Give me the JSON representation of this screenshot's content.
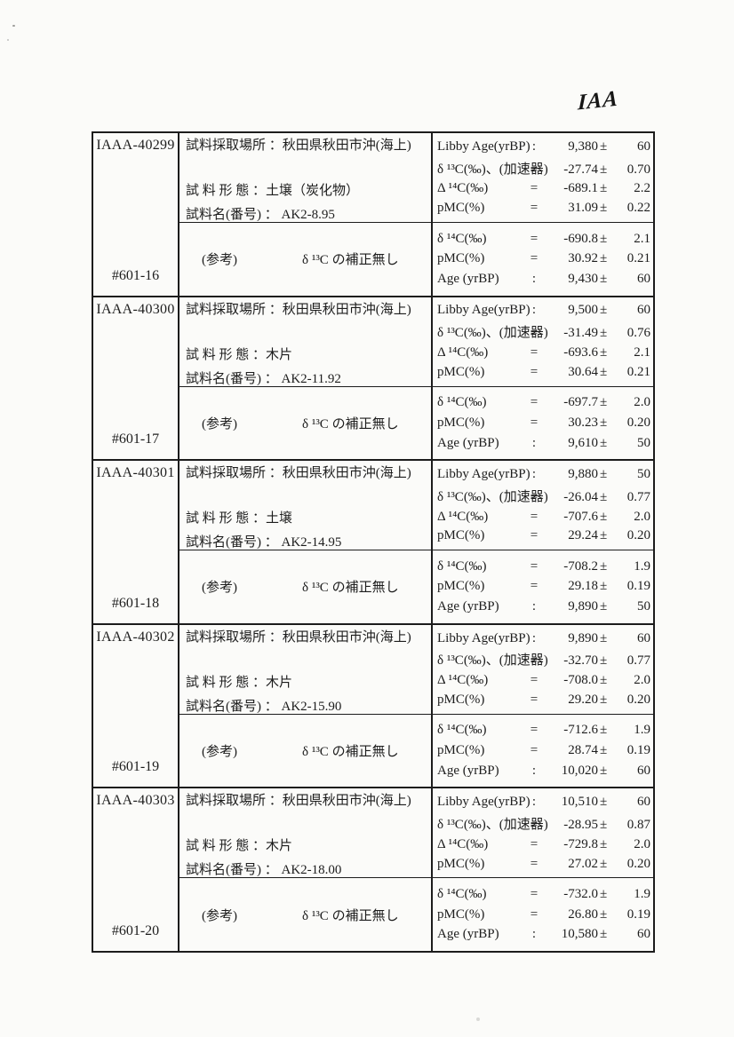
{
  "page": {
    "handwritten_mark": "IAA"
  },
  "symbols": {
    "pm": "±"
  },
  "table": {
    "blocks": [
      {
        "sample_id": "IAAA-40299",
        "ref_no": "#601-16",
        "location_line": "試料採取場所 ：秋田県秋田市沖(海上)",
        "form_line": "試 料 形 態  ：土壌（炭化物）",
        "name_line": "試料名(番号) ： AK2-8.95",
        "note_label": "(参考)",
        "note_text": "δ ¹³C の補正無し",
        "meas_top": [
          {
            "label": "Libby Age(yrBP)",
            "sep": ":",
            "value": "9,380",
            "error": "60"
          },
          {
            "label": "δ ¹³C(‰)、(加速器)",
            "sep": "=",
            "value": "-27.74",
            "error": "0.70"
          },
          {
            "label": "Δ ¹⁴C(‰)",
            "sep": "=",
            "value": "-689.1",
            "error": "2.2"
          },
          {
            "label": "pMC(%)",
            "sep": "=",
            "value": "31.09",
            "error": "0.22"
          }
        ],
        "meas_bottom": [
          {
            "label": "δ ¹⁴C(‰)",
            "sep": "=",
            "value": "-690.8",
            "error": "2.1"
          },
          {
            "label": "pMC(%)",
            "sep": "=",
            "value": "30.92",
            "error": "0.21"
          },
          {
            "label": "Age (yrBP)",
            "sep": ":",
            "value": "9,430",
            "error": "60"
          }
        ]
      },
      {
        "sample_id": "IAAA-40300",
        "ref_no": "#601-17",
        "location_line": "試料採取場所 ：秋田県秋田市沖(海上)",
        "form_line": "試 料 形 態  ：木片",
        "name_line": "試料名(番号) ： AK2-11.92",
        "note_label": "(参考)",
        "note_text": "δ ¹³C の補正無し",
        "meas_top": [
          {
            "label": "Libby Age(yrBP)",
            "sep": ":",
            "value": "9,500",
            "error": "60"
          },
          {
            "label": "δ ¹³C(‰)、(加速器)",
            "sep": "=",
            "value": "-31.49",
            "error": "0.76"
          },
          {
            "label": "Δ ¹⁴C(‰)",
            "sep": "=",
            "value": "-693.6",
            "error": "2.1"
          },
          {
            "label": "pMC(%)",
            "sep": "=",
            "value": "30.64",
            "error": "0.21"
          }
        ],
        "meas_bottom": [
          {
            "label": "δ ¹⁴C(‰)",
            "sep": "=",
            "value": "-697.7",
            "error": "2.0"
          },
          {
            "label": "pMC(%)",
            "sep": "=",
            "value": "30.23",
            "error": "0.20"
          },
          {
            "label": "Age (yrBP)",
            "sep": ":",
            "value": "9,610",
            "error": "50"
          }
        ]
      },
      {
        "sample_id": "IAAA-40301",
        "ref_no": "#601-18",
        "location_line": "試料採取場所 ：秋田県秋田市沖(海上)",
        "form_line": "試 料 形 態  ：土壌",
        "name_line": "試料名(番号) ： AK2-14.95",
        "note_label": "(参考)",
        "note_text": "δ ¹³C の補正無し",
        "meas_top": [
          {
            "label": "Libby Age(yrBP)",
            "sep": ":",
            "value": "9,880",
            "error": "50"
          },
          {
            "label": "δ ¹³C(‰)、(加速器)",
            "sep": "=",
            "value": "-26.04",
            "error": "0.77"
          },
          {
            "label": "Δ ¹⁴C(‰)",
            "sep": "=",
            "value": "-707.6",
            "error": "2.0"
          },
          {
            "label": "pMC(%)",
            "sep": "=",
            "value": "29.24",
            "error": "0.20"
          }
        ],
        "meas_bottom": [
          {
            "label": "δ ¹⁴C(‰)",
            "sep": "=",
            "value": "-708.2",
            "error": "1.9"
          },
          {
            "label": "pMC(%)",
            "sep": "=",
            "value": "29.18",
            "error": "0.19"
          },
          {
            "label": "Age (yrBP)",
            "sep": ":",
            "value": "9,890",
            "error": "50"
          }
        ]
      },
      {
        "sample_id": "IAAA-40302",
        "ref_no": "#601-19",
        "location_line": "試料採取場所 ：秋田県秋田市沖(海上)",
        "form_line": "試 料 形 態  ：木片",
        "name_line": "試料名(番号) ： AK2-15.90",
        "note_label": "(参考)",
        "note_text": "δ ¹³C の補正無し",
        "meas_top": [
          {
            "label": "Libby Age(yrBP)",
            "sep": ":",
            "value": "9,890",
            "error": "60"
          },
          {
            "label": "δ ¹³C(‰)、(加速器)",
            "sep": "=",
            "value": "-32.70",
            "error": "0.77"
          },
          {
            "label": "Δ ¹⁴C(‰)",
            "sep": "=",
            "value": "-708.0",
            "error": "2.0"
          },
          {
            "label": "pMC(%)",
            "sep": "=",
            "value": "29.20",
            "error": "0.20"
          }
        ],
        "meas_bottom": [
          {
            "label": "δ ¹⁴C(‰)",
            "sep": "=",
            "value": "-712.6",
            "error": "1.9"
          },
          {
            "label": "pMC(%)",
            "sep": "=",
            "value": "28.74",
            "error": "0.19"
          },
          {
            "label": "Age (yrBP)",
            "sep": ":",
            "value": "10,020",
            "error": "60"
          }
        ]
      },
      {
        "sample_id": "IAAA-40303",
        "ref_no": "#601-20",
        "location_line": "試料採取場所 ：秋田県秋田市沖(海上)",
        "form_line": "試 料 形 態  ：木片",
        "name_line": "試料名(番号) ： AK2-18.00",
        "note_label": "(参考)",
        "note_text": "δ ¹³C の補正無し",
        "meas_top": [
          {
            "label": "Libby Age(yrBP)",
            "sep": ":",
            "value": "10,510",
            "error": "60"
          },
          {
            "label": "δ ¹³C(‰)、(加速器)",
            "sep": "=",
            "value": "-28.95",
            "error": "0.87"
          },
          {
            "label": "Δ ¹⁴C(‰)",
            "sep": "=",
            "value": "-729.8",
            "error": "2.0"
          },
          {
            "label": "pMC(%)",
            "sep": "=",
            "value": "27.02",
            "error": "0.20"
          }
        ],
        "meas_bottom": [
          {
            "label": "δ ¹⁴C(‰)",
            "sep": "=",
            "value": "-732.0",
            "error": "1.9"
          },
          {
            "label": "pMC(%)",
            "sep": "=",
            "value": "26.80",
            "error": "0.19"
          },
          {
            "label": "Age (yrBP)",
            "sep": ":",
            "value": "10,580",
            "error": "60"
          }
        ]
      }
    ]
  }
}
